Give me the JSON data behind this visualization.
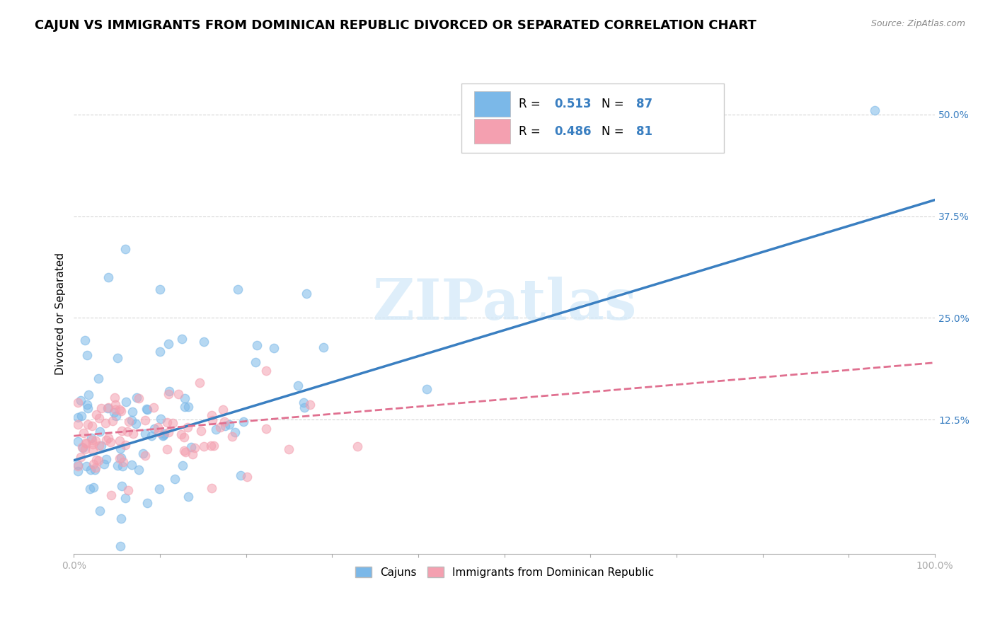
{
  "title": "CAJUN VS IMMIGRANTS FROM DOMINICAN REPUBLIC DIVORCED OR SEPARATED CORRELATION CHART",
  "source_text": "Source: ZipAtlas.com",
  "ylabel": "Divorced or Separated",
  "xlim": [
    0.0,
    1.0
  ],
  "ylim": [
    -0.04,
    0.55
  ],
  "xticks": [
    0.0,
    0.1,
    0.2,
    0.3,
    0.4,
    0.5,
    0.6,
    0.7,
    0.8,
    0.9,
    1.0
  ],
  "xticklabels": [
    "0.0%",
    "",
    "",
    "",
    "",
    "",
    "",
    "",
    "",
    "",
    "100.0%"
  ],
  "ytick_positions": [
    0.125,
    0.25,
    0.375,
    0.5
  ],
  "yticklabels": [
    "12.5%",
    "25.0%",
    "37.5%",
    "50.0%"
  ],
  "cajun_color": "#7bb8e8",
  "dominican_color": "#f4a0b0",
  "cajun_line_color": "#3a7fc1",
  "dominican_line_color": "#e07090",
  "legend_R1": "0.513",
  "legend_N1": "87",
  "legend_R2": "0.486",
  "legend_N2": "81",
  "legend_value_color": "#3a7fc1",
  "series1_label": "Cajuns",
  "series2_label": "Immigrants from Dominican Republic",
  "watermark": "ZIPatlas",
  "title_fontsize": 13,
  "axis_fontsize": 11,
  "tick_fontsize": 10,
  "background_color": "#ffffff",
  "grid_color": "#cccccc",
  "cajun_line_x": [
    0.0,
    1.0
  ],
  "cajun_line_y": [
    0.075,
    0.395
  ],
  "dominican_line_x": [
    0.0,
    1.0
  ],
  "dominican_line_y": [
    0.105,
    0.195
  ]
}
